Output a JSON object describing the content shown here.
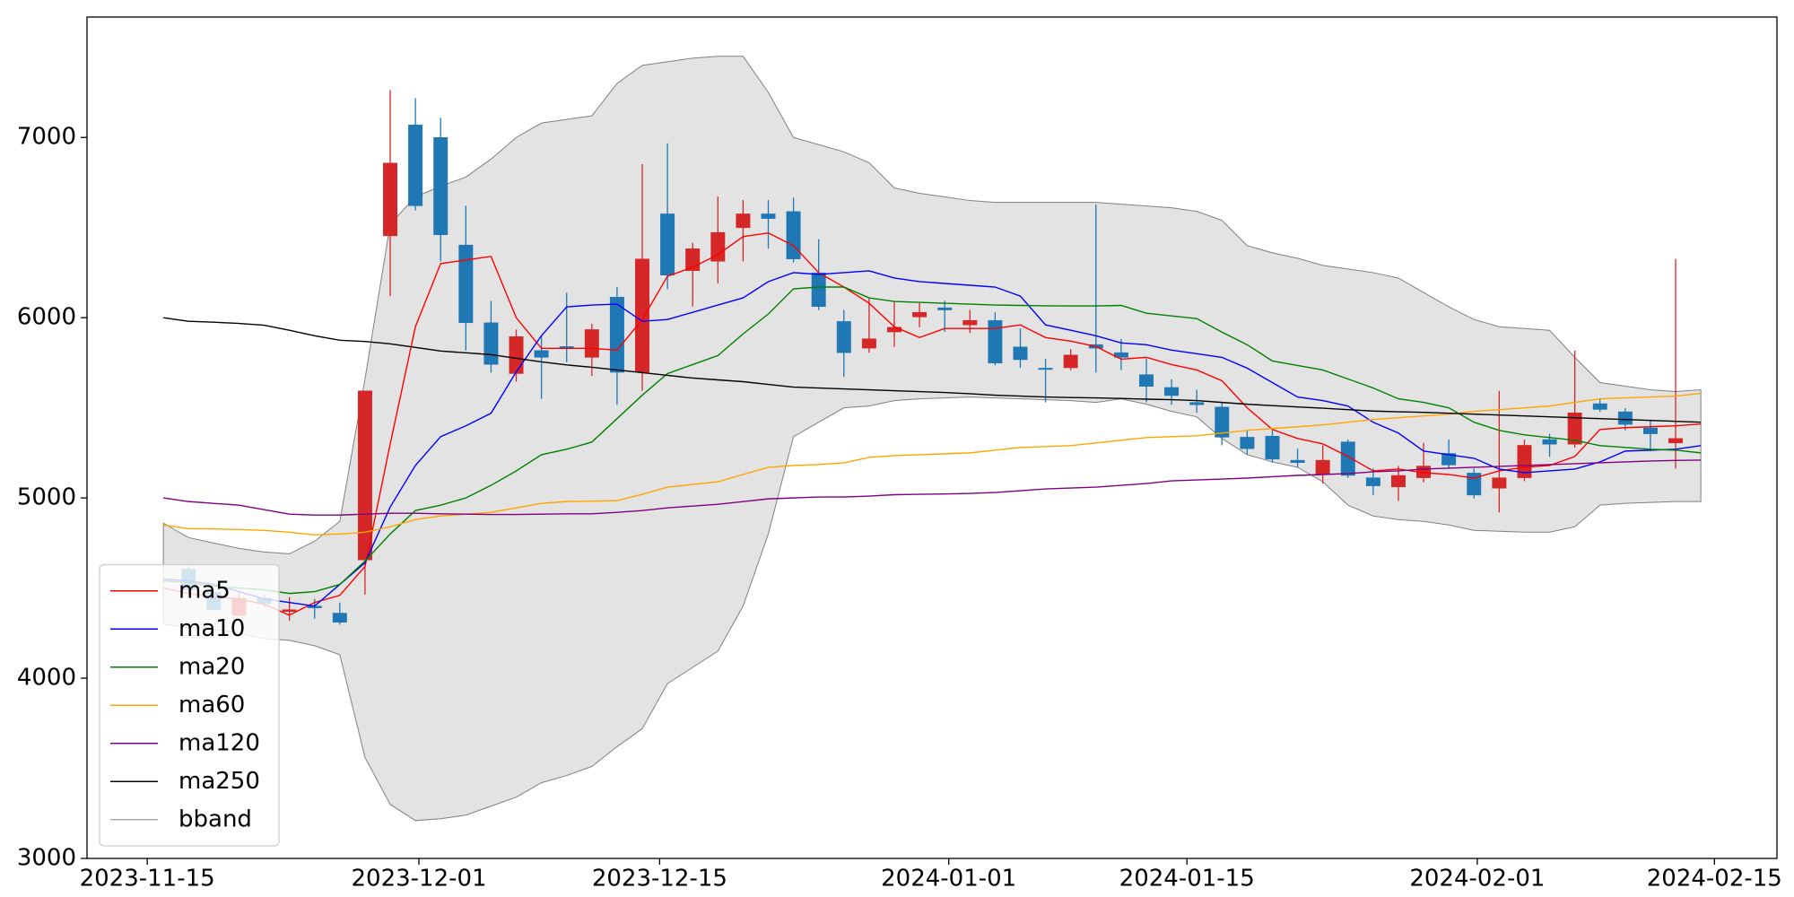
{
  "chart_data": {
    "type": "candlestick",
    "up_color": "#d62728",
    "down_color": "#1f77b4",
    "open": [
      null,
      4605,
      4477,
      4348,
      4445,
      4370,
      4400,
      4361,
      4656,
      6454,
      7070,
      7000,
      6403,
      5972,
      5690,
      5818,
      5840,
      5780,
      6114,
      5697,
      6576,
      6261,
      6313,
      6499,
      6576,
      6589,
      6249,
      5979,
      5831,
      5921,
      6004,
      6055,
      5960,
      5985,
      5838,
      5720,
      5722,
      5851,
      5806,
      5684,
      5613,
      5530,
      5504,
      5337,
      5343,
      5209,
      5132,
      5311,
      5112,
      5061,
      5112,
      5247,
      5138,
      5054,
      5112,
      5324,
      5298,
      5523,
      5478,
      5388,
      5305,
      null
    ],
    "high": [
      null,
      4618,
      4489,
      4477,
      4470,
      4450,
      4440,
      4419,
      5594,
      7263,
      7218,
      7109,
      6621,
      6094,
      5934,
      5902,
      6139,
      5966,
      6171,
      6852,
      6968,
      6415,
      6672,
      6653,
      6653,
      6666,
      6435,
      6043,
      6107,
      6088,
      6081,
      6094,
      6043,
      6030,
      5940,
      5773,
      5825,
      6627,
      5883,
      5773,
      5658,
      5600,
      5530,
      5375,
      5388,
      5273,
      5292,
      5324,
      5163,
      5177,
      5305,
      5324,
      5163,
      5594,
      5324,
      5356,
      5818,
      5549,
      5498,
      5427,
      6326,
      null
    ],
    "low": [
      null,
      4477,
      4374,
      4342,
      4393,
      4320,
      4330,
      4297,
      4464,
      6120,
      6595,
      6313,
      5818,
      5696,
      5645,
      5549,
      5754,
      5677,
      5517,
      5594,
      6158,
      6062,
      6191,
      6313,
      6383,
      6306,
      6043,
      5671,
      5806,
      5838,
      5947,
      5921,
      5915,
      5735,
      5722,
      5530,
      5709,
      5696,
      5709,
      5530,
      5517,
      5472,
      5292,
      5241,
      5196,
      5170,
      5080,
      5112,
      5016,
      4984,
      5087,
      5163,
      4997,
      4920,
      5093,
      5228,
      5279,
      5478,
      5375,
      5260,
      5163,
      null
    ],
    "close": [
      null,
      4489,
      4380,
      4445,
      4412,
      4380,
      4390,
      4310,
      5594,
      6858,
      6621,
      6460,
      5972,
      5741,
      5895,
      5780,
      5830,
      5934,
      5697,
      6326,
      6236,
      6383,
      6473,
      6576,
      6550,
      6326,
      6062,
      5806,
      5883,
      5947,
      6030,
      6043,
      5985,
      5748,
      5767,
      5715,
      5793,
      5831,
      5780,
      5619,
      5568,
      5517,
      5337,
      5273,
      5215,
      5196,
      5209,
      5125,
      5067,
      5125,
      5177,
      5183,
      5016,
      5112,
      5292,
      5298,
      5472,
      5491,
      5408,
      5356,
      5330,
      null
    ],
    "series": [
      {
        "name": "ma5",
        "color": "red",
        "values": [
          4500,
          4470,
          4450,
          4440,
          4410,
          4350,
          4420,
          4460,
          4620,
          5300,
          5950,
          6300,
          6320,
          6340,
          6000,
          5830,
          5830,
          5830,
          5820,
          5990,
          6230,
          6280,
          6350,
          6450,
          6470,
          6400,
          6250,
          6170,
          6080,
          5950,
          5890,
          5940,
          5940,
          5940,
          5960,
          5890,
          5870,
          5840,
          5770,
          5780,
          5740,
          5710,
          5650,
          5500,
          5380,
          5330,
          5300,
          5230,
          5150,
          5160,
          5140,
          5130,
          5110,
          5150,
          5170,
          5180,
          5230,
          5380,
          5390,
          5395,
          5400,
          5410
        ]
      },
      {
        "name": "ma10",
        "color": "blue",
        "values": [
          4550,
          4540,
          4520,
          4480,
          4440,
          4420,
          4400,
          4520,
          4640,
          4950,
          5180,
          5340,
          5400,
          5470,
          5700,
          5900,
          6060,
          6070,
          6075,
          5980,
          5990,
          6030,
          6070,
          6110,
          6200,
          6250,
          6240,
          6250,
          6260,
          6220,
          6200,
          6190,
          6180,
          6170,
          6120,
          5960,
          5930,
          5900,
          5860,
          5850,
          5820,
          5800,
          5780,
          5720,
          5640,
          5560,
          5540,
          5510,
          5420,
          5360,
          5260,
          5240,
          5220,
          5160,
          5140,
          5150,
          5160,
          5200,
          5260,
          5265,
          5270,
          5290
        ]
      },
      {
        "name": "ma20",
        "color": "green",
        "values": [
          4540,
          4530,
          4510,
          4500,
          4490,
          4470,
          4480,
          4520,
          4650,
          4800,
          4930,
          4960,
          5000,
          5070,
          5150,
          5240,
          5270,
          5310,
          5440,
          5570,
          5690,
          5740,
          5790,
          5910,
          6020,
          6160,
          6170,
          6170,
          6110,
          6090,
          6085,
          6080,
          6075,
          6070,
          6068,
          6066,
          6065,
          6065,
          6068,
          6025,
          6010,
          5995,
          5920,
          5850,
          5760,
          5735,
          5710,
          5660,
          5610,
          5550,
          5530,
          5500,
          5420,
          5375,
          5350,
          5335,
          5320,
          5290,
          5280,
          5270,
          5265,
          5250
        ]
      },
      {
        "name": "ma60",
        "color": "orange",
        "values": [
          4850,
          4830,
          4828,
          4825,
          4820,
          4810,
          4795,
          4800,
          4810,
          4840,
          4880,
          4900,
          4910,
          4920,
          4945,
          4970,
          4980,
          4982,
          4985,
          5020,
          5060,
          5075,
          5090,
          5130,
          5170,
          5180,
          5185,
          5195,
          5225,
          5235,
          5240,
          5245,
          5250,
          5265,
          5280,
          5285,
          5290,
          5305,
          5320,
          5335,
          5340,
          5345,
          5360,
          5375,
          5385,
          5395,
          5405,
          5420,
          5435,
          5445,
          5455,
          5465,
          5480,
          5490,
          5500,
          5510,
          5530,
          5550,
          5555,
          5560,
          5565,
          5580
        ]
      },
      {
        "name": "ma120",
        "color": "purple",
        "values": [
          5000,
          4980,
          4970,
          4960,
          4935,
          4910,
          4905,
          4905,
          4910,
          4915,
          4915,
          4912,
          4910,
          4908,
          4908,
          4910,
          4912,
          4912,
          4920,
          4930,
          4945,
          4955,
          4965,
          4980,
          4995,
          5000,
          5005,
          5005,
          5010,
          5018,
          5020,
          5022,
          5025,
          5030,
          5040,
          5050,
          5055,
          5060,
          5070,
          5080,
          5095,
          5100,
          5105,
          5110,
          5118,
          5125,
          5130,
          5135,
          5145,
          5150,
          5160,
          5165,
          5170,
          5175,
          5180,
          5185,
          5190,
          5195,
          5200,
          5205,
          5208,
          5210
        ]
      },
      {
        "name": "ma250",
        "color": "black",
        "values": [
          6000,
          5980,
          5975,
          5968,
          5958,
          5930,
          5900,
          5875,
          5868,
          5855,
          5835,
          5815,
          5805,
          5795,
          5775,
          5755,
          5738,
          5725,
          5710,
          5695,
          5680,
          5665,
          5655,
          5645,
          5630,
          5615,
          5610,
          5605,
          5600,
          5595,
          5590,
          5585,
          5578,
          5570,
          5565,
          5560,
          5557,
          5555,
          5552,
          5548,
          5545,
          5540,
          5530,
          5520,
          5512,
          5505,
          5498,
          5490,
          5482,
          5478,
          5475,
          5470,
          5465,
          5460,
          5455,
          5450,
          5445,
          5440,
          5435,
          5430,
          5425,
          5420
        ]
      }
    ],
    "band": {
      "name": "bband",
      "color": "gray",
      "fill": "#e3e3e3",
      "upper": [
        4860,
        4780,
        4750,
        4720,
        4700,
        4690,
        4760,
        4870,
        5660,
        6520,
        6670,
        6730,
        6780,
        6880,
        7000,
        7080,
        7100,
        7120,
        7300,
        7400,
        7420,
        7440,
        7450,
        7450,
        7250,
        7000,
        6960,
        6920,
        6860,
        6720,
        6690,
        6670,
        6650,
        6640,
        6640,
        6640,
        6640,
        6640,
        6630,
        6620,
        6610,
        6590,
        6540,
        6400,
        6360,
        6330,
        6290,
        6270,
        6250,
        6220,
        6140,
        6060,
        5990,
        5950,
        5940,
        5930,
        5780,
        5640,
        5620,
        5600,
        5590,
        5600
      ],
      "lower": [
        4300,
        4280,
        4270,
        4250,
        4220,
        4210,
        4180,
        4130,
        3560,
        3300,
        3210,
        3220,
        3240,
        3290,
        3340,
        3420,
        3460,
        3510,
        3620,
        3720,
        3970,
        4060,
        4150,
        4400,
        4800,
        5340,
        5420,
        5500,
        5510,
        5540,
        5550,
        5555,
        5560,
        5555,
        5550,
        5545,
        5540,
        5530,
        5550,
        5520,
        5480,
        5450,
        5330,
        5240,
        5200,
        5170,
        5090,
        4960,
        4900,
        4880,
        4870,
        4850,
        4820,
        4815,
        4810,
        4810,
        4840,
        4960,
        4970,
        4975,
        4980,
        4980
      ]
    },
    "xlim": [
      -3.03,
      64.02
    ],
    "xticks": [
      {
        "value": -0.64,
        "label": "2023-11-15"
      },
      {
        "value": 10.14,
        "label": "2023-12-01"
      },
      {
        "value": 19.69,
        "label": "2023-12-15"
      },
      {
        "value": 31.16,
        "label": "2024-01-01"
      },
      {
        "value": 40.61,
        "label": "2024-01-15"
      },
      {
        "value": 52.13,
        "label": "2024-02-01"
      },
      {
        "value": 61.54,
        "label": "2024-02-15"
      }
    ],
    "ylim": [
      3000,
      7668
    ],
    "yticks": [
      3000,
      4000,
      5000,
      6000,
      7000
    ],
    "legend": "lower left"
  }
}
